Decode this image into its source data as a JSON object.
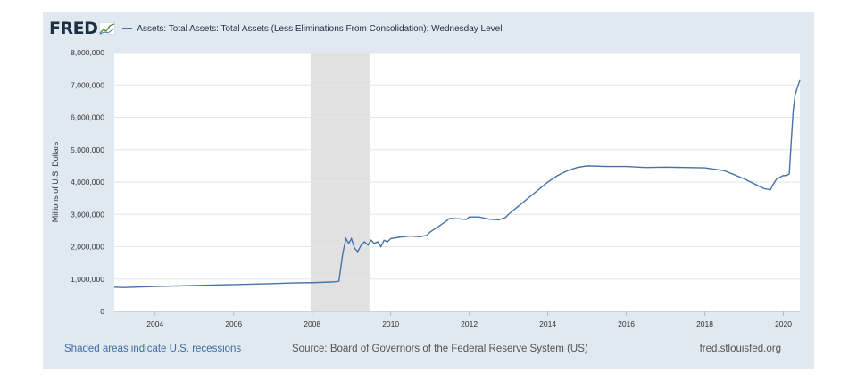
{
  "header": {
    "logo_text": "FRED",
    "logo_icon": "fred-graph-icon",
    "series_title": "Assets: Total Assets: Total Assets (Less Eliminations From Consolidation): Wednesday Level"
  },
  "colors": {
    "line": "#4572a7",
    "recession": "#e1e1e1",
    "frame": "#e1e9f0",
    "plot_bg": "#ffffff",
    "grid": "#e6e6e6",
    "logo": "#1c2f45"
  },
  "footer": {
    "note": "Shaded areas indicate U.S. recessions",
    "source": "Source: Board of Governors of the Federal Reserve System (US)",
    "site": "fred.stlouisfed.org"
  },
  "chart_data": {
    "type": "line",
    "title": "Assets: Total Assets: Total Assets (Less Eliminations From Consolidation): Wednesday Level",
    "xlabel": "",
    "ylabel": "Millions of U.S. Dollars",
    "xlim": [
      2002.96,
      2020.42
    ],
    "ylim": [
      0,
      8000000
    ],
    "xticks": [
      2004,
      2006,
      2008,
      2010,
      2012,
      2014,
      2016,
      2018,
      2020
    ],
    "yticks": [
      0,
      1000000,
      2000000,
      3000000,
      4000000,
      5000000,
      6000000,
      7000000,
      8000000
    ],
    "ytick_labels": [
      "0",
      "1,000,000",
      "2,000,000",
      "3,000,000",
      "4,000,000",
      "5,000,000",
      "6,000,000",
      "7,000,000",
      "8,000,000"
    ],
    "grid": "horizontal",
    "recessions": [
      [
        2007.96,
        2009.46
      ]
    ],
    "series": [
      {
        "x": [
          2002.96,
          2003.2,
          2004.0,
          2005.0,
          2006.0,
          2007.0,
          2007.5,
          2008.0,
          2008.5,
          2008.68,
          2008.78,
          2008.86,
          2008.93,
          2009.0,
          2009.08,
          2009.16,
          2009.25,
          2009.33,
          2009.42,
          2009.5,
          2009.58,
          2009.67,
          2009.75,
          2009.83,
          2009.92,
          2010.0,
          2010.25,
          2010.5,
          2010.75,
          2010.92,
          2011.0,
          2011.25,
          2011.5,
          2011.75,
          2011.92,
          2012.0,
          2012.25,
          2012.5,
          2012.75,
          2012.92,
          2013.0,
          2013.25,
          2013.5,
          2013.75,
          2014.0,
          2014.25,
          2014.5,
          2014.75,
          2015.0,
          2015.5,
          2016.0,
          2016.5,
          2017.0,
          2017.5,
          2018.0,
          2018.5,
          2019.0,
          2019.25,
          2019.5,
          2019.67,
          2019.75,
          2019.83,
          2020.0,
          2020.08,
          2020.15,
          2020.2,
          2020.25,
          2020.3,
          2020.35,
          2020.42
        ],
        "y": [
          750000,
          740000,
          770000,
          800000,
          830000,
          860000,
          880000,
          890000,
          910000,
          930000,
          1800000,
          2250000,
          2100000,
          2250000,
          1950000,
          1850000,
          2050000,
          2150000,
          2050000,
          2200000,
          2100000,
          2150000,
          2000000,
          2200000,
          2150000,
          2250000,
          2300000,
          2330000,
          2310000,
          2350000,
          2450000,
          2650000,
          2870000,
          2860000,
          2840000,
          2920000,
          2920000,
          2850000,
          2830000,
          2900000,
          3000000,
          3250000,
          3500000,
          3750000,
          4000000,
          4200000,
          4350000,
          4450000,
          4500000,
          4480000,
          4480000,
          4450000,
          4460000,
          4450000,
          4440000,
          4350000,
          4100000,
          3950000,
          3800000,
          3760000,
          3950000,
          4100000,
          4200000,
          4200000,
          4250000,
          5250000,
          6200000,
          6700000,
          6900000,
          7150000
        ]
      }
    ]
  }
}
